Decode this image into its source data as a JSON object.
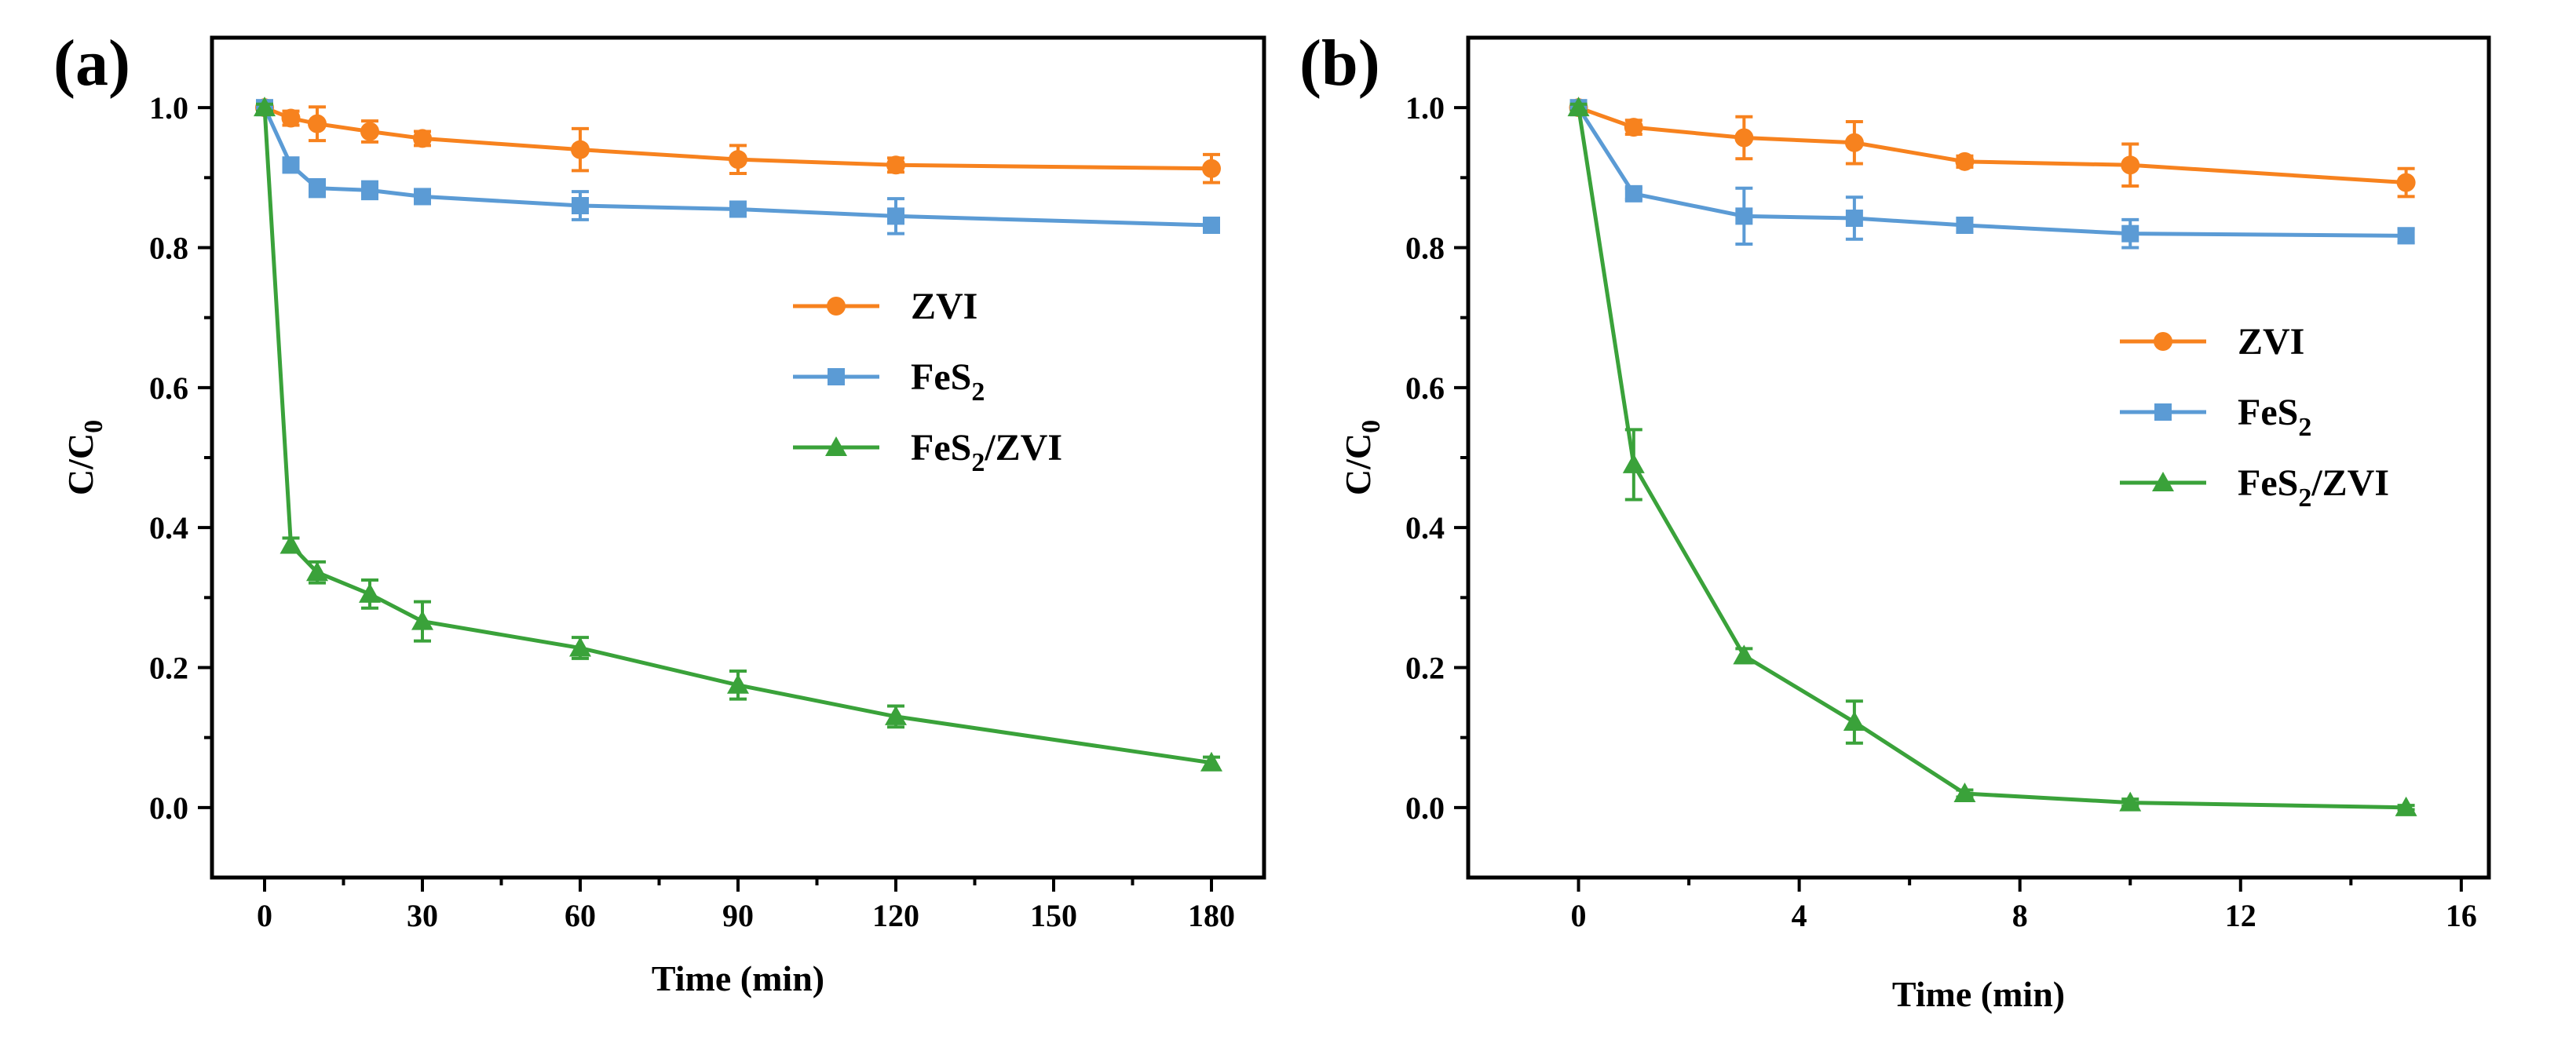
{
  "chart_data": [
    {
      "type": "line",
      "panel_label": "(a)",
      "xlabel": "Time (min)",
      "ylabel": "C/C",
      "ylabel_sub": "0",
      "xlim": [
        -10,
        190
      ],
      "ylim": [
        -0.1,
        1.1
      ],
      "xticks": [
        0,
        30,
        60,
        90,
        120,
        150,
        180
      ],
      "yticks": [
        0.0,
        0.2,
        0.4,
        0.6,
        0.8,
        1.0
      ],
      "yticks_labels": [
        "0.0",
        "0.2",
        "0.4",
        "0.6",
        "0.8",
        "1.0"
      ],
      "legend_position": "center-right",
      "series": [
        {
          "name": "ZVI",
          "name_sub": "",
          "name_suffix": "",
          "color": "#F7821E",
          "marker": "circle",
          "x": [
            0,
            5,
            10,
            20,
            30,
            60,
            90,
            120,
            180
          ],
          "y": [
            1.0,
            0.985,
            0.977,
            0.966,
            0.956,
            0.94,
            0.926,
            0.918,
            0.913
          ],
          "err": [
            0.008,
            0.01,
            0.024,
            0.015,
            0.01,
            0.03,
            0.02,
            0.01,
            0.02
          ]
        },
        {
          "name": "FeS",
          "name_sub": "2",
          "name_suffix": "",
          "color": "#5B9BD5",
          "marker": "square",
          "x": [
            0,
            5,
            10,
            20,
            30,
            60,
            90,
            120,
            180
          ],
          "y": [
            1.0,
            0.918,
            0.885,
            0.882,
            0.873,
            0.86,
            0.855,
            0.845,
            0.832
          ],
          "err": [
            0.005,
            0.01,
            0.012,
            0.012,
            0.01,
            0.02,
            0.01,
            0.025,
            0.01
          ]
        },
        {
          "name": "FeS",
          "name_sub": "2",
          "name_suffix": "/ZVI",
          "color": "#3AA23A",
          "marker": "triangle",
          "x": [
            0,
            5,
            10,
            20,
            30,
            60,
            90,
            120,
            180
          ],
          "y": [
            1.0,
            0.375,
            0.336,
            0.305,
            0.266,
            0.228,
            0.175,
            0.13,
            0.064
          ],
          "err": [
            0.005,
            0.01,
            0.015,
            0.02,
            0.028,
            0.015,
            0.02,
            0.015,
            0.008
          ]
        }
      ]
    },
    {
      "type": "line",
      "panel_label": "(b)",
      "xlabel": "Time (min)",
      "ylabel": "C/C",
      "ylabel_sub": "0",
      "xlim": [
        -2,
        16.5
      ],
      "ylim": [
        -0.1,
        1.1
      ],
      "xticks": [
        0,
        4,
        8,
        12,
        16
      ],
      "yticks": [
        0.0,
        0.2,
        0.4,
        0.6,
        0.8,
        1.0
      ],
      "yticks_labels": [
        "0.0",
        "0.2",
        "0.4",
        "0.6",
        "0.8",
        "1.0"
      ],
      "legend_position": "center-right",
      "series": [
        {
          "name": "ZVI",
          "name_sub": "",
          "name_suffix": "",
          "color": "#F7821E",
          "marker": "circle",
          "x": [
            0,
            1,
            3,
            5,
            7,
            10,
            15
          ],
          "y": [
            1.0,
            0.972,
            0.957,
            0.95,
            0.923,
            0.918,
            0.893
          ],
          "err": [
            0.005,
            0.01,
            0.03,
            0.03,
            0.008,
            0.03,
            0.02
          ]
        },
        {
          "name": "FeS",
          "name_sub": "2",
          "name_suffix": "",
          "color": "#5B9BD5",
          "marker": "square",
          "x": [
            0,
            1,
            3,
            5,
            7,
            10,
            15
          ],
          "y": [
            1.0,
            0.877,
            0.845,
            0.842,
            0.832,
            0.82,
            0.817
          ],
          "err": [
            0.005,
            0.008,
            0.04,
            0.03,
            0.01,
            0.02,
            0.01
          ]
        },
        {
          "name": "FeS",
          "name_sub": "2",
          "name_suffix": "/ZVI",
          "color": "#3AA23A",
          "marker": "triangle",
          "x": [
            0,
            1,
            3,
            5,
            7,
            10,
            15
          ],
          "y": [
            1.0,
            0.49,
            0.217,
            0.122,
            0.02,
            0.007,
            0.0
          ],
          "err": [
            0.005,
            0.05,
            0.01,
            0.03,
            0.005,
            0.005,
            0.003
          ]
        }
      ]
    }
  ]
}
